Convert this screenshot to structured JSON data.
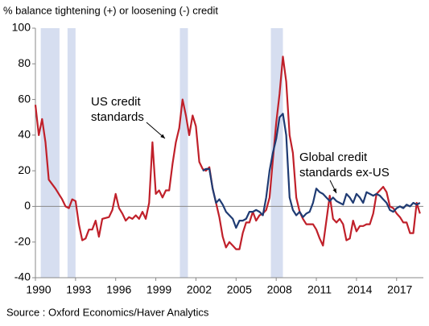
{
  "chart_data": {
    "type": "line",
    "title": "% balance tightening (+) or loosening (-) credit",
    "source": "Source : Oxford Economics/Haver Analytics",
    "xlim": [
      1990,
      2019
    ],
    "xticks": [
      1990,
      1993,
      1996,
      1999,
      2002,
      2005,
      2008,
      2011,
      2014,
      2017
    ],
    "ylim": [
      -40,
      100
    ],
    "yticks": [
      -40,
      -20,
      0,
      20,
      40,
      60,
      80,
      100
    ],
    "shaded_periods": [
      [
        1990.4,
        1991.8
      ],
      [
        1992.4,
        1993.0
      ],
      [
        2000.8,
        2001.4
      ],
      [
        2007.6,
        2008.5
      ]
    ],
    "shade_color": "#d6def0",
    "series": [
      {
        "color": "#c0202a",
        "x": [
          1990.0,
          1990.25,
          1990.5,
          1990.75,
          1991.0,
          1991.5,
          1992.0,
          1992.25,
          1992.5,
          1992.75,
          1993.0,
          1993.25,
          1993.5,
          1993.75,
          1994.0,
          1994.25,
          1994.5,
          1994.75,
          1995.0,
          1995.5,
          1995.75,
          1996.0,
          1996.25,
          1996.5,
          1996.75,
          1997.0,
          1997.25,
          1997.5,
          1997.75,
          1998.0,
          1998.25,
          1998.5,
          1998.75,
          1999.0,
          1999.25,
          1999.5,
          1999.75,
          2000.0,
          2000.25,
          2000.5,
          2000.75,
          2001.0,
          2001.25,
          2001.5,
          2001.75,
          2002.0,
          2002.25,
          2002.5,
          2002.75,
          2003.0,
          2003.25,
          2003.5,
          2003.75,
          2004.0,
          2004.25,
          2004.5,
          2004.75,
          2005.0,
          2005.25,
          2005.5,
          2005.75,
          2006.0,
          2006.25,
          2006.5,
          2006.75,
          2007.0,
          2007.25,
          2007.5,
          2007.75,
          2008.0,
          2008.25,
          2008.5,
          2008.75,
          2009.0,
          2009.25,
          2009.5,
          2009.75,
          2010.0,
          2010.25,
          2010.5,
          2010.75,
          2011.0,
          2011.25,
          2011.5,
          2011.75,
          2012.0,
          2012.25,
          2012.5,
          2012.75,
          2013.0,
          2013.25,
          2013.5,
          2013.75,
          2014.0,
          2014.25,
          2014.5,
          2014.75,
          2015.0,
          2015.25,
          2015.5,
          2015.75,
          2016.0,
          2016.25,
          2016.5,
          2016.75,
          2017.0,
          2017.25,
          2017.5,
          2017.75,
          2018.0,
          2018.25,
          2018.5,
          2018.75
        ],
        "values": [
          57,
          40,
          49,
          36,
          15,
          10,
          4,
          0,
          -1,
          4,
          3,
          -10,
          -19,
          -18,
          -13,
          -13,
          -8,
          -17,
          -7,
          -6,
          -2,
          7,
          -1,
          -4,
          -8,
          -6,
          -7,
          -5,
          -7,
          -3,
          -7,
          2,
          36,
          7,
          9,
          5,
          9,
          9,
          24,
          36,
          44,
          60,
          51,
          40,
          51,
          45,
          25,
          21,
          20,
          22,
          10,
          2,
          -6,
          -17,
          -23,
          -20,
          -22,
          -24,
          -24,
          -15,
          -9,
          -9,
          -3,
          -8,
          -5,
          -4,
          -2,
          5,
          26,
          47,
          63,
          84,
          70,
          40,
          30,
          5,
          -3,
          -7,
          -10,
          -10,
          -10,
          -13,
          -18,
          -22,
          -8,
          6,
          -7,
          -9,
          -7,
          -10,
          -19,
          -18,
          -8,
          -14,
          -11,
          -11,
          -10,
          -10,
          -4,
          7,
          9,
          11,
          8,
          0,
          -1,
          -4,
          -6,
          -9,
          -9,
          -15,
          -15,
          2,
          -4
        ]
      },
      {
        "color": "#1f3b73",
        "x": [
          2002.5,
          2002.75,
          2003.0,
          2003.25,
          2003.5,
          2003.75,
          2004.0,
          2004.25,
          2004.5,
          2004.75,
          2005.0,
          2005.25,
          2005.5,
          2005.75,
          2006.0,
          2006.25,
          2006.5,
          2006.75,
          2007.0,
          2007.25,
          2007.5,
          2007.75,
          2008.0,
          2008.25,
          2008.5,
          2008.75,
          2009.0,
          2009.25,
          2009.5,
          2009.75,
          2010.0,
          2010.25,
          2010.5,
          2010.75,
          2011.0,
          2011.25,
          2011.5,
          2011.75,
          2012.0,
          2012.25,
          2012.5,
          2012.75,
          2013.0,
          2013.25,
          2013.5,
          2013.75,
          2014.0,
          2014.25,
          2014.5,
          2014.75,
          2015.0,
          2015.25,
          2015.5,
          2015.75,
          2016.0,
          2016.25,
          2016.5,
          2016.75,
          2017.0,
          2017.25,
          2017.5,
          2017.75,
          2018.0,
          2018.25,
          2018.5,
          2018.75
        ],
        "values": [
          20,
          21,
          21,
          10,
          2,
          4,
          1,
          -3,
          -5,
          -7,
          -12,
          -8,
          -8,
          -7,
          -3,
          -3,
          -2,
          -3,
          -5,
          5,
          20,
          30,
          38,
          50,
          52,
          40,
          5,
          -2,
          -5,
          -3,
          -6,
          -4,
          -3,
          2,
          10,
          8,
          7,
          5,
          3,
          5,
          3,
          2,
          1,
          7,
          5,
          2,
          7,
          5,
          2,
          8,
          7,
          6,
          7,
          6,
          4,
          2,
          -2,
          -3,
          -1,
          0,
          -1,
          1,
          0,
          2,
          1,
          2
        ]
      }
    ],
    "annotations": [
      {
        "lines": [
          "US credit",
          "standards"
        ]
      },
      {
        "lines": [
          "Global credit",
          "standards ex-US"
        ]
      }
    ]
  }
}
